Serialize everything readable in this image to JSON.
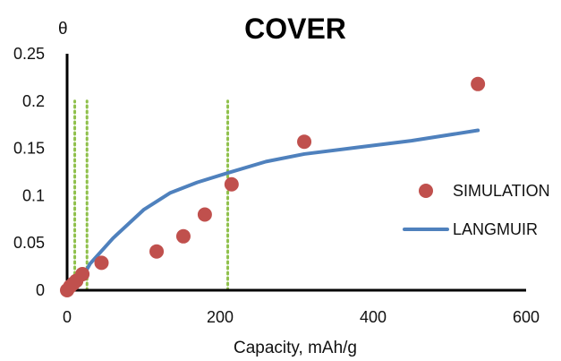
{
  "chart_data": {
    "type": "scatter",
    "title": "COVER",
    "xlabel": "Capacity, mAh/g",
    "ylabel": "θ",
    "xlim": [
      0,
      600
    ],
    "ylim": [
      0,
      0.25
    ],
    "x_ticks": [
      0,
      200,
      400,
      600
    ],
    "y_ticks": [
      0,
      0.05,
      0.1,
      0.15,
      0.2,
      0.25
    ],
    "x_tick_labels": [
      "0",
      "200",
      "400",
      "600"
    ],
    "y_tick_labels": [
      "0",
      "0.05",
      "0.1",
      "0.15",
      "0.2",
      "0.25"
    ],
    "grid": false,
    "legend_position": "right",
    "reference_lines": [
      {
        "x": 10,
        "y_range": [
          0,
          0.2
        ],
        "style": "dotted",
        "color": "#8FC04B"
      },
      {
        "x": 26,
        "y_range": [
          0,
          0.2
        ],
        "style": "dotted",
        "color": "#8FC04B"
      },
      {
        "x": 210,
        "y_range": [
          0,
          0.2
        ],
        "style": "dotted",
        "color": "#8FC04B"
      }
    ],
    "series": [
      {
        "name": "SIMULATION",
        "type": "scatter",
        "color": "#C0504D",
        "x": [
          0,
          4,
          8,
          12,
          20,
          45,
          117,
          152,
          180,
          215,
          310,
          537
        ],
        "y": [
          0,
          0.004,
          0.007,
          0.01,
          0.017,
          0.029,
          0.041,
          0.057,
          0.08,
          0.112,
          0.157,
          0.218
        ]
      },
      {
        "name": "LANGMUIR",
        "type": "line",
        "color": "#4F81BD",
        "x": [
          15,
          30,
          60,
          100,
          135,
          170,
          210,
          260,
          310,
          380,
          450,
          537
        ],
        "y": [
          0.006,
          0.028,
          0.055,
          0.085,
          0.103,
          0.114,
          0.124,
          0.136,
          0.144,
          0.151,
          0.158,
          0.169
        ]
      }
    ]
  }
}
